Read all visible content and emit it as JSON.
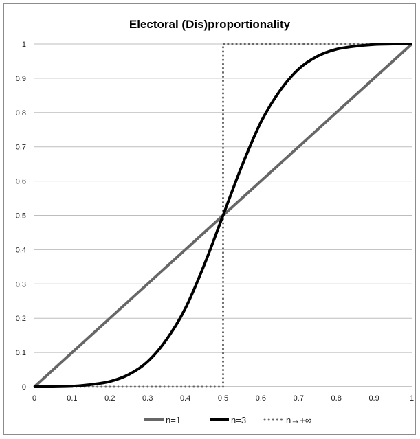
{
  "chart_data": {
    "type": "line",
    "title": "Electoral (Dis)proportionality",
    "xlabel": "",
    "ylabel": "",
    "xlim": [
      0,
      1
    ],
    "ylim": [
      0,
      1
    ],
    "x_ticks": [
      "0",
      "0.1",
      "0.2",
      "0.3",
      "0.4",
      "0.5",
      "0.6",
      "0.7",
      "0.8",
      "0.9",
      "1"
    ],
    "y_ticks": [
      "0",
      "0.1",
      "0.2",
      "0.3",
      "0.4",
      "0.5",
      "0.6",
      "0.7",
      "0.8",
      "0.9",
      "1"
    ],
    "grid": "horizontal",
    "legend_position": "bottom",
    "series": [
      {
        "name": "n=1",
        "color": "#676767",
        "style": "solid",
        "x": [
          0,
          0.1,
          0.2,
          0.3,
          0.4,
          0.5,
          0.6,
          0.7,
          0.8,
          0.9,
          1
        ],
        "y": [
          0,
          0.1,
          0.2,
          0.3,
          0.4,
          0.5,
          0.6,
          0.7,
          0.8,
          0.9,
          1
        ]
      },
      {
        "name": "n=3",
        "color": "#000000",
        "style": "solid",
        "x": [
          0,
          0.05,
          0.1,
          0.15,
          0.2,
          0.25,
          0.3,
          0.35,
          0.4,
          0.45,
          0.5,
          0.55,
          0.6,
          0.65,
          0.7,
          0.75,
          0.8,
          0.85,
          0.9,
          0.95,
          1
        ],
        "y": [
          0,
          0.0001,
          0.0014,
          0.0066,
          0.0154,
          0.0357,
          0.0733,
          0.1375,
          0.2286,
          0.3553,
          0.5,
          0.6447,
          0.7714,
          0.8625,
          0.9267,
          0.9643,
          0.9846,
          0.9934,
          0.9986,
          0.9999,
          1
        ]
      },
      {
        "name": "n→+∞",
        "color": "#676767",
        "style": "dotted",
        "x": [
          0,
          0.5,
          0.5,
          1
        ],
        "y": [
          0,
          0,
          1,
          1
        ]
      }
    ]
  }
}
